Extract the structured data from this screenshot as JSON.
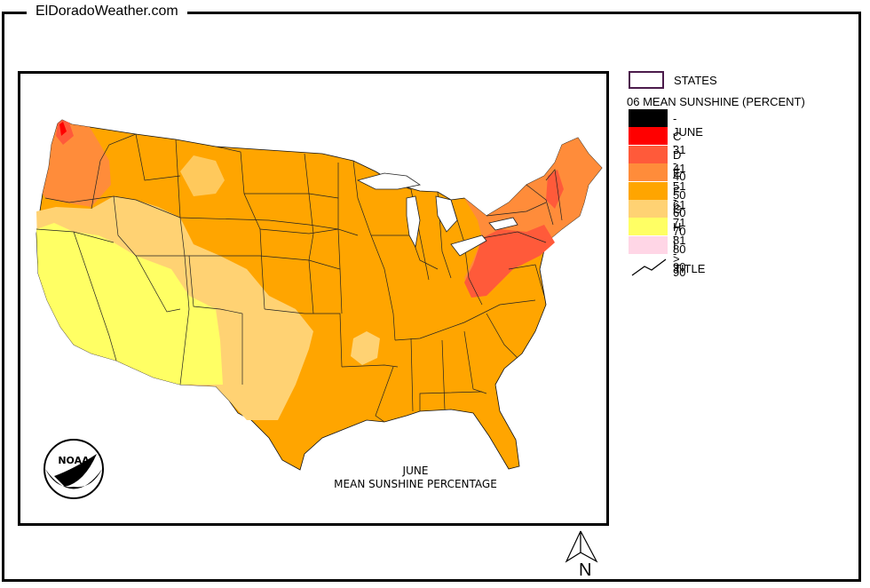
{
  "header": {
    "site_name": "ElDoradoWeather.com"
  },
  "map": {
    "caption_line1": "JUNE",
    "caption_line2": "MEAN SUNSHINE PERCENTAGE",
    "logo_text": "NOAA",
    "north_label": "N"
  },
  "legend": {
    "states_label": "STATES",
    "heading": "06 MEAN SUNSHINE (PERCENT)",
    "items": [
      {
        "label": "- JUNE -",
        "color": "#000000"
      },
      {
        "label": "C 31 - 40",
        "color": "#ff0000"
      },
      {
        "label": "D 41 - 50",
        "color": "#ff5a3a"
      },
      {
        "label": "E 51 - 60",
        "color": "#ff8c3a"
      },
      {
        "label": "F 61 - 70",
        "color": "#ffa500"
      },
      {
        "label": "G 71 - 80",
        "color": "#ffd273"
      },
      {
        "label": "H 81 - 90",
        "color": "#ffff64"
      },
      {
        "label": "I > 90",
        "color": "#ffd6e6"
      }
    ],
    "title_label": "TITLE"
  }
}
